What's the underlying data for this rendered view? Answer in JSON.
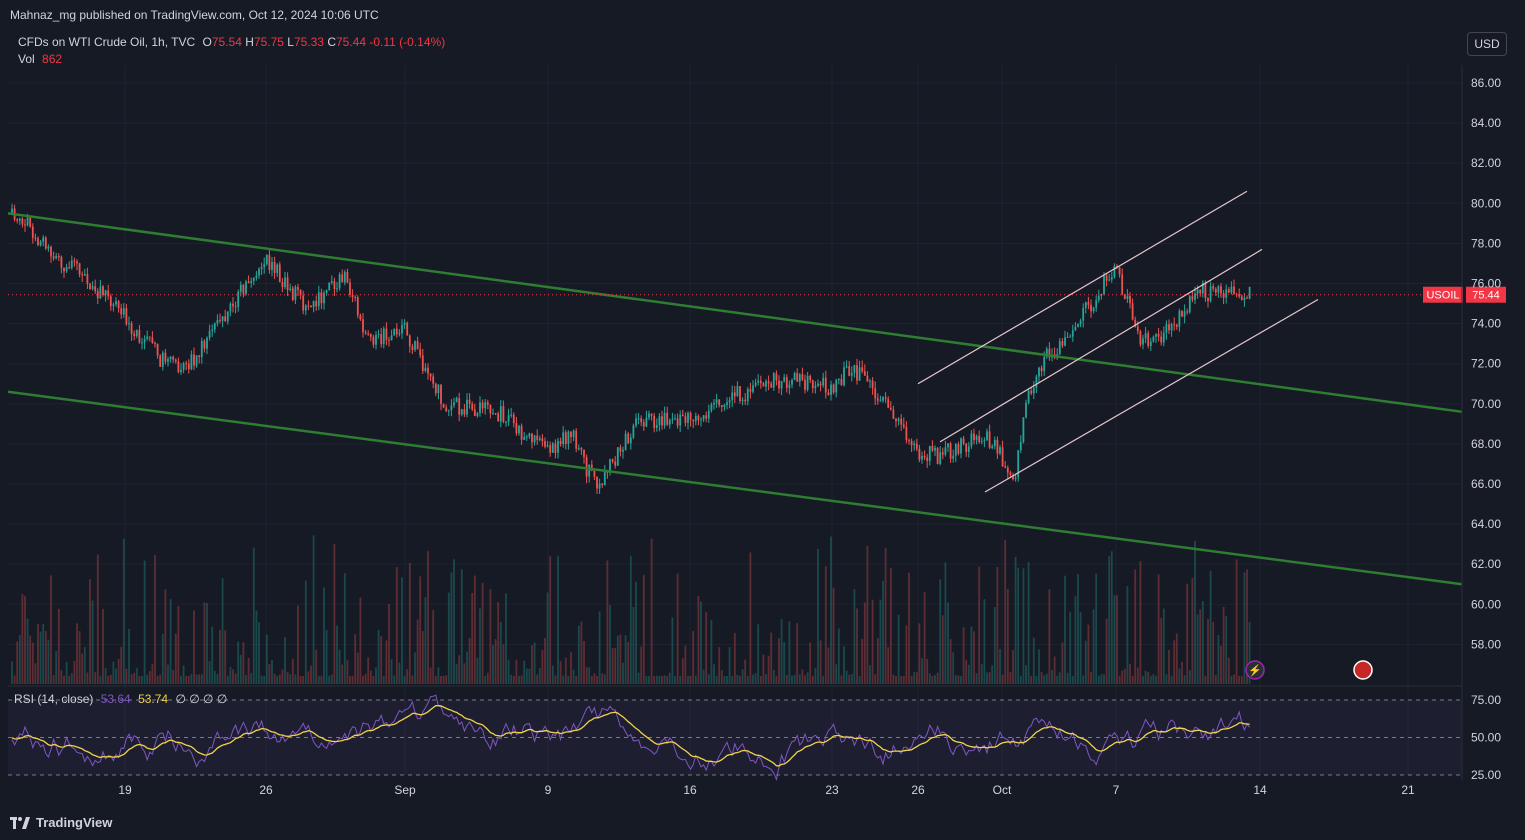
{
  "header": {
    "publisher_text": "Mahnaz_mg published on TradingView.com, Oct 12, 2024 10:06 UTC"
  },
  "legend": {
    "symbol": "CFDs on WTI Crude Oil, 1h, TVC",
    "open_label": "O",
    "open": "75.54",
    "high_label": "H",
    "high": "75.75",
    "low_label": "L",
    "low": "75.33",
    "close_label": "C",
    "close": "75.44",
    "change": "-0.11 (-0.14%)",
    "vol_label": "Vol",
    "vol": "862"
  },
  "rsi_legend": {
    "label": "RSI (14, close)",
    "value": "53.64",
    "ma_value": "53.74",
    "placeholders": "∅ ∅ ∅ ∅"
  },
  "currency_button": "USD",
  "price_tag": {
    "symbol": "USOIL",
    "price": "75.44"
  },
  "price_axis": [
    "86.00",
    "84.00",
    "82.00",
    "80.00",
    "78.00",
    "76.00",
    "74.00",
    "72.00",
    "70.00",
    "68.00",
    "66.00",
    "64.00",
    "62.00",
    "60.00",
    "58.00"
  ],
  "rsi_axis": [
    "75.00",
    "50.00",
    "25.00"
  ],
  "time_axis": [
    "19",
    "26",
    "Sep",
    "9",
    "16",
    "23",
    "26",
    "Oct",
    "7",
    "14",
    "21"
  ],
  "branding": "TradingView",
  "colors": {
    "background": "#161a25",
    "up": "#26a69a",
    "down": "#ef5350",
    "trendline": "#2e7d32",
    "channel": "#e8c6cc",
    "rsi_line": "#7e57c2",
    "rsi_ma": "#f0d34b",
    "price_line": "#f23645"
  },
  "chart_data": {
    "type": "candlestick",
    "symbol": "USOIL",
    "interval": "1h",
    "price_range": [
      57,
      87
    ],
    "last_price": 75.44,
    "close_series": [
      {
        "x": "Aug 13",
        "close": 79.5
      },
      {
        "x": "Aug 15",
        "close": 77.2
      },
      {
        "x": "Aug 16",
        "close": 76.5
      },
      {
        "x": "Aug 19",
        "close": 74.3
      },
      {
        "x": "Aug 21",
        "close": 72.0
      },
      {
        "x": "Aug 22",
        "close": 71.8
      },
      {
        "x": "Aug 26",
        "close": 77.2
      },
      {
        "x": "Aug 28",
        "close": 74.8
      },
      {
        "x": "Aug 30",
        "close": 76.5
      },
      {
        "x": "Aug 31",
        "close": 73.2
      },
      {
        "x": "Sep 3",
        "close": 73.6
      },
      {
        "x": "Sep 4",
        "close": 70.0
      },
      {
        "x": "Sep 6",
        "close": 69.5
      },
      {
        "x": "Sep 9",
        "close": 67.6
      },
      {
        "x": "Sep 10",
        "close": 68.6
      },
      {
        "x": "Sep 11",
        "close": 65.8
      },
      {
        "x": "Sep 13",
        "close": 69.2
      },
      {
        "x": "Sep 16",
        "close": 69.3
      },
      {
        "x": "Sep 18",
        "close": 70.3
      },
      {
        "x": "Sep 20",
        "close": 71.2
      },
      {
        "x": "Sep 23",
        "close": 70.8
      },
      {
        "x": "Sep 24",
        "close": 71.8
      },
      {
        "x": "Sep 25",
        "close": 69.8
      },
      {
        "x": "Sep 26",
        "close": 67.6
      },
      {
        "x": "Sep 27",
        "close": 67.4
      },
      {
        "x": "Sep 30",
        "close": 68.5
      },
      {
        "x": "Oct 1",
        "close": 66.5
      },
      {
        "x": "Oct 2",
        "close": 70.0
      },
      {
        "x": "Oct 3",
        "close": 72.2
      },
      {
        "x": "Oct 4",
        "close": 73.6
      },
      {
        "x": "Oct 7",
        "close": 76.8
      },
      {
        "x": "Oct 8",
        "close": 73.0
      },
      {
        "x": "Oct 9",
        "close": 73.5
      },
      {
        "x": "Oct 10",
        "close": 75.6
      },
      {
        "x": "Oct 11",
        "close": 75.44
      }
    ],
    "trendlines": [
      {
        "name": "upper descending",
        "from": {
          "x": "Aug 12",
          "y": 79.5
        },
        "to": {
          "x": "Oct 20",
          "y": 69.6
        }
      },
      {
        "name": "lower descending",
        "from": {
          "x": "Aug 12",
          "y": 70.6
        },
        "to": {
          "x": "Oct 20",
          "y": 61.0
        }
      },
      {
        "name": "channel upper",
        "from": {
          "x": "Sep 26",
          "y": 71.0
        },
        "to": {
          "x": "Oct 13",
          "y": 80.6
        }
      },
      {
        "name": "channel middle",
        "from": {
          "x": "Sep 27",
          "y": 68.1
        },
        "to": {
          "x": "Oct 14",
          "y": 77.7
        }
      },
      {
        "name": "channel lower",
        "from": {
          "x": "Sep 30",
          "y": 65.6
        },
        "to": {
          "x": "Oct 15",
          "y": 75.2
        }
      }
    ],
    "rsi": {
      "period": 14,
      "value": 53.64,
      "ma": 53.74,
      "levels": [
        75,
        50,
        25
      ]
    }
  }
}
